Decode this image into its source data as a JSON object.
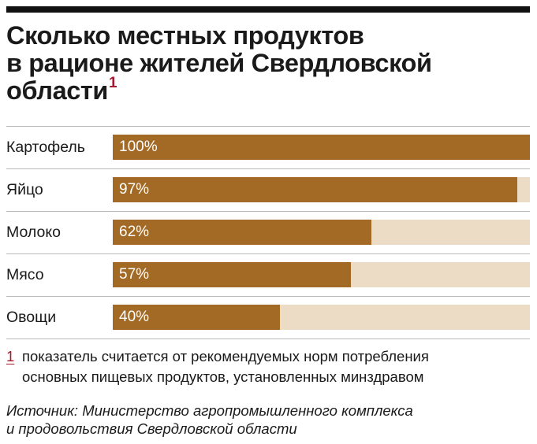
{
  "title": {
    "lines": [
      "Сколько местных продуктов",
      "в рационе жителей Свердловской",
      "области"
    ],
    "footnote_mark": "1"
  },
  "chart_data": {
    "type": "bar",
    "orientation": "horizontal",
    "title": "Сколько местных продуктов в рационе жителей Свердловской области",
    "categories": [
      "Картофель",
      "Яйцо",
      "Молоко",
      "Мясо",
      "Овощи"
    ],
    "values": [
      100,
      97,
      62,
      57,
      40
    ],
    "value_labels": [
      "100%",
      "97%",
      "62%",
      "57%",
      "40%"
    ],
    "unit": "%",
    "xlim": [
      0,
      100
    ],
    "xlabel": "",
    "ylabel": "",
    "colors": {
      "fill": "#a36a26",
      "track": "#ecdcc6",
      "label": "#ffffff"
    }
  },
  "footnote": {
    "mark": "1",
    "lines": [
      "показатель считается от рекомендуемых норм потребления",
      "основных пищевых продуктов, установленных минздравом"
    ]
  },
  "source": {
    "lines": [
      "Источник: Министерство агропромышленного комплекса",
      "и продовольствия Свердловской области"
    ]
  },
  "colors": {
    "accent": "#a6192e",
    "rule": "#111111",
    "gridline": "#b9b9b9"
  }
}
